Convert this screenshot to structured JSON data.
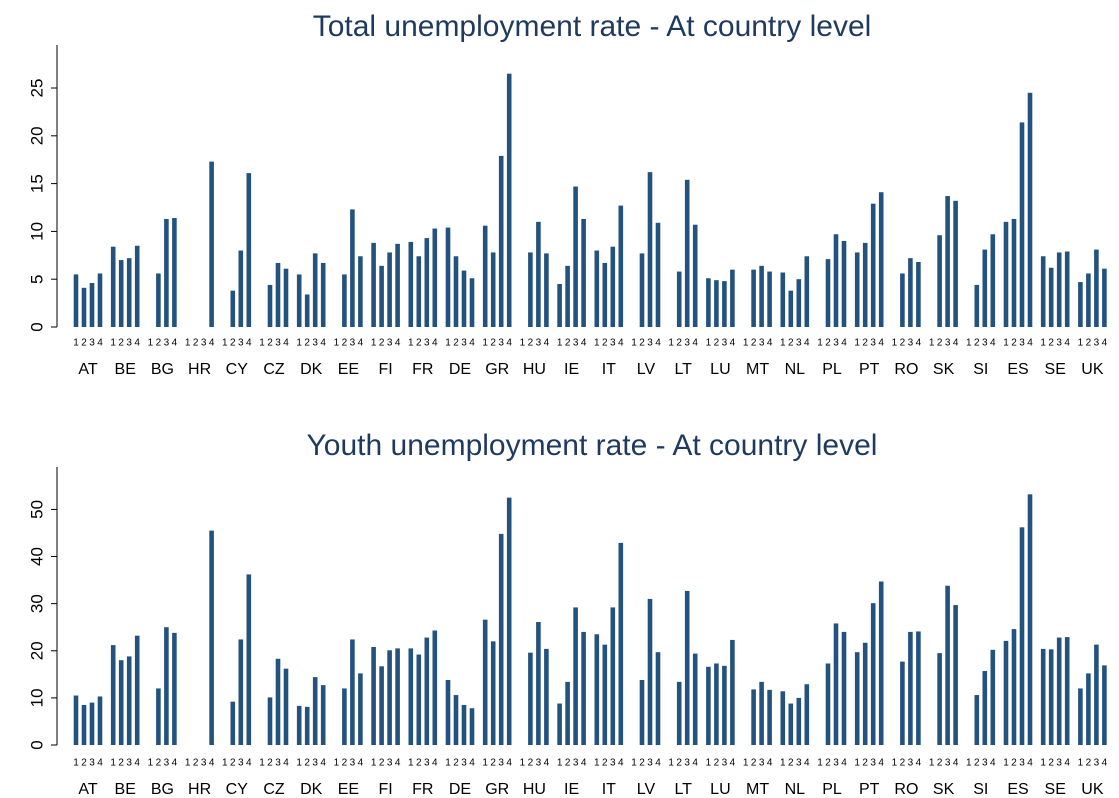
{
  "chart_data": [
    {
      "type": "bar",
      "title": "Total unemployment rate - At country level",
      "categories": [
        "AT",
        "BE",
        "BG",
        "HR",
        "CY",
        "CZ",
        "DK",
        "EE",
        "FI",
        "FR",
        "DE",
        "GR",
        "HU",
        "IE",
        "IT",
        "LV",
        "LT",
        "LU",
        "MT",
        "NL",
        "PL",
        "PT",
        "RO",
        "SK",
        "SI",
        "ES",
        "SE",
        "UK"
      ],
      "color": "#24527f",
      "ylim": [
        0,
        29.5
      ],
      "yticks": [
        0,
        5,
        10,
        15,
        20,
        25
      ],
      "series": [
        {
          "name": "1",
          "values": [
            5.5,
            8.4,
            null,
            null,
            null,
            null,
            5.5,
            null,
            8.8,
            8.9,
            10.4,
            10.6,
            null,
            4.5,
            8.0,
            null,
            null,
            5.1,
            null,
            5.7,
            null,
            7.8,
            null,
            null,
            null,
            11.0,
            7.4,
            4.7
          ]
        },
        {
          "name": "2",
          "values": [
            4.1,
            7.0,
            5.6,
            null,
            3.8,
            4.4,
            3.4,
            5.5,
            6.4,
            7.4,
            7.4,
            7.8,
            7.8,
            6.4,
            6.7,
            7.7,
            5.8,
            4.9,
            6.0,
            3.8,
            7.1,
            8.8,
            5.6,
            9.6,
            4.4,
            11.3,
            6.2,
            5.6
          ]
        },
        {
          "name": "3",
          "values": [
            4.6,
            7.2,
            11.3,
            null,
            8.0,
            6.7,
            7.7,
            12.3,
            7.8,
            9.3,
            5.9,
            17.9,
            11.0,
            14.7,
            8.4,
            16.2,
            15.4,
            4.8,
            6.4,
            5.0,
            9.7,
            12.9,
            7.2,
            13.7,
            8.1,
            21.4,
            7.8,
            8.1
          ]
        },
        {
          "name": "4",
          "values": [
            5.6,
            8.5,
            11.4,
            17.3,
            16.1,
            6.1,
            6.7,
            7.4,
            8.7,
            10.3,
            5.1,
            26.5,
            7.7,
            11.3,
            12.7,
            10.9,
            10.7,
            6.0,
            5.8,
            7.4,
            9.0,
            14.1,
            6.8,
            13.2,
            9.7,
            24.5,
            7.9,
            6.1
          ]
        }
      ]
    },
    {
      "type": "bar",
      "title": "Youth unemployment rate - At country level",
      "categories": [
        "AT",
        "BE",
        "BG",
        "HR",
        "CY",
        "CZ",
        "DK",
        "EE",
        "FI",
        "FR",
        "DE",
        "GR",
        "HU",
        "IE",
        "IT",
        "LV",
        "LT",
        "LU",
        "MT",
        "NL",
        "PL",
        "PT",
        "RO",
        "SK",
        "SI",
        "ES",
        "SE",
        "UK"
      ],
      "color": "#24527f",
      "ylim": [
        0,
        59
      ],
      "yticks": [
        0,
        10,
        20,
        30,
        40,
        50
      ],
      "series": [
        {
          "name": "1",
          "values": [
            10.5,
            21.2,
            null,
            null,
            null,
            null,
            8.3,
            null,
            20.8,
            20.5,
            13.8,
            26.6,
            null,
            8.8,
            23.5,
            null,
            null,
            16.6,
            null,
            11.4,
            null,
            19.7,
            null,
            null,
            null,
            22.1,
            20.4,
            12.0
          ]
        },
        {
          "name": "2",
          "values": [
            8.5,
            18.0,
            12.0,
            null,
            9.2,
            10.1,
            8.1,
            12.0,
            16.7,
            19.2,
            10.6,
            22.0,
            19.6,
            13.4,
            21.3,
            13.8,
            13.4,
            17.3,
            11.8,
            8.8,
            17.3,
            21.7,
            17.7,
            19.5,
            10.6,
            24.6,
            20.3,
            15.2
          ]
        },
        {
          "name": "3",
          "values": [
            9.0,
            18.8,
            25.0,
            null,
            22.4,
            18.3,
            14.4,
            22.4,
            20.1,
            22.8,
            8.5,
            44.8,
            26.1,
            29.2,
            29.2,
            31.0,
            32.7,
            16.8,
            13.4,
            10.0,
            25.8,
            30.1,
            24.0,
            33.8,
            15.7,
            46.2,
            22.8,
            21.3
          ]
        },
        {
          "name": "4",
          "values": [
            10.3,
            23.2,
            23.8,
            45.5,
            36.2,
            16.2,
            12.7,
            15.2,
            20.5,
            24.3,
            7.8,
            52.5,
            20.4,
            24.0,
            42.9,
            19.7,
            19.4,
            22.3,
            11.7,
            12.9,
            24.0,
            34.7,
            24.1,
            29.7,
            20.2,
            53.2,
            22.9,
            16.9
          ]
        }
      ]
    }
  ]
}
